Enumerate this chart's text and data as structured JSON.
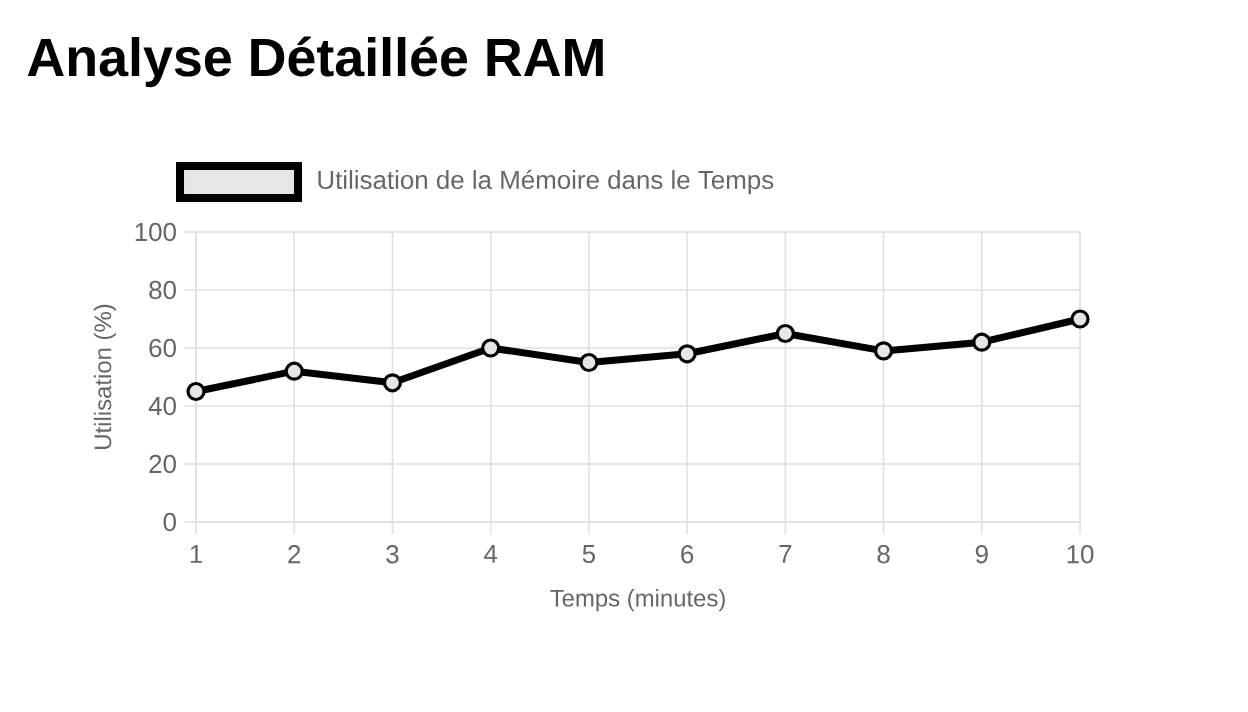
{
  "chart_data": {
    "type": "line",
    "title": "Analyse Détaillée RAM",
    "xlabel": "Temps (minutes)",
    "ylabel": "Utilisation (%)",
    "categories": [
      "1",
      "2",
      "3",
      "4",
      "5",
      "6",
      "7",
      "8",
      "9",
      "10"
    ],
    "series": [
      {
        "name": "Utilisation de la Mémoire dans le Temps",
        "color": "#000000",
        "values": [
          45,
          52,
          48,
          60,
          55,
          58,
          65,
          59,
          62,
          70
        ]
      }
    ],
    "ylim": [
      0,
      100
    ],
    "yticks": [
      0,
      20,
      40,
      60,
      80,
      100
    ],
    "grid": true,
    "legend": "top",
    "marker": "circle",
    "line_style": "solid"
  }
}
